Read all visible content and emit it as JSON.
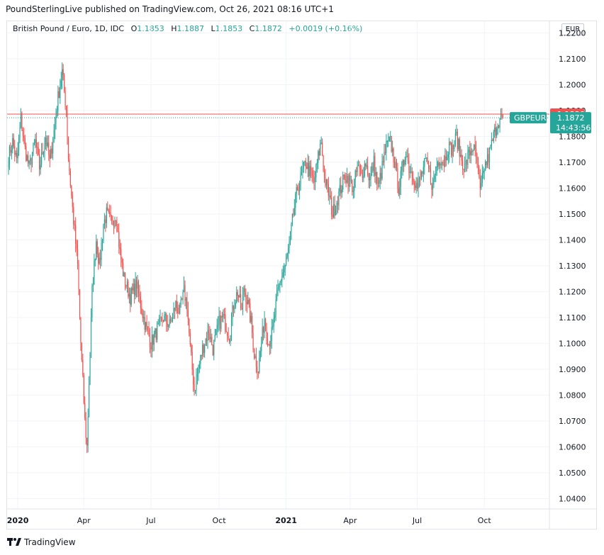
{
  "header": {
    "text": "PoundSterlingLive published on TradingView.com, Oct 26, 2021 08:16 UTC+1"
  },
  "legend": {
    "title": "British Pound / Euro, 1D, IDC",
    "o_label": "O",
    "o_value": "1.1853",
    "h_label": "H",
    "h_value": "1.1887",
    "l_label": "L",
    "l_value": "1.1853",
    "c_label": "C",
    "c_value": "1.1872",
    "change": "+0.0019 (+0.16%)"
  },
  "currency": "EUR",
  "footer": {
    "brand": "TradingView"
  },
  "colors": {
    "up": "#26a69a",
    "down": "#ef5350",
    "grid": "#f0f3fa",
    "axis_text": "#131722"
  },
  "chart_data": {
    "type": "candlestick",
    "title": "British Pound / Euro, 1D, IDC",
    "symbol": "GBPEUR",
    "ylim": [
      1.036,
      1.2245
    ],
    "yticks": [
      "1.2200",
      "1.2100",
      "1.2000",
      "1.1900",
      "1.1800",
      "1.1700",
      "1.1600",
      "1.1500",
      "1.1400",
      "1.1300",
      "1.1200",
      "1.1100",
      "1.1000",
      "1.0900",
      "1.0800",
      "1.0700",
      "1.0600",
      "1.0500",
      "1.0400"
    ],
    "xticks": [
      {
        "label": "2020",
        "bold": true,
        "index": 9
      },
      {
        "label": "Apr",
        "bold": false,
        "index": 73
      },
      {
        "label": "Jul",
        "bold": false,
        "index": 138
      },
      {
        "label": "Oct",
        "bold": false,
        "index": 204
      },
      {
        "label": "2021",
        "bold": true,
        "index": 269
      },
      {
        "label": "Apr",
        "bold": false,
        "index": 331
      },
      {
        "label": "Jul",
        "bold": false,
        "index": 396
      },
      {
        "label": "Oct",
        "bold": false,
        "index": 461
      }
    ],
    "keyframes": [
      [
        0,
        1.172
      ],
      [
        4,
        1.178
      ],
      [
        8,
        1.17
      ],
      [
        12,
        1.187
      ],
      [
        16,
        1.175
      ],
      [
        20,
        1.168
      ],
      [
        26,
        1.178
      ],
      [
        30,
        1.168
      ],
      [
        36,
        1.18
      ],
      [
        40,
        1.17
      ],
      [
        45,
        1.185
      ],
      [
        48,
        1.195
      ],
      [
        52,
        1.205
      ],
      [
        56,
        1.19
      ],
      [
        58,
        1.172
      ],
      [
        62,
        1.152
      ],
      [
        67,
        1.13
      ],
      [
        70,
        1.1
      ],
      [
        74,
        1.07
      ],
      [
        76,
        1.06
      ],
      [
        78,
        1.085
      ],
      [
        81,
        1.12
      ],
      [
        85,
        1.14
      ],
      [
        88,
        1.13
      ],
      [
        92,
        1.146
      ],
      [
        95,
        1.15
      ],
      [
        100,
        1.146
      ],
      [
        104,
        1.15
      ],
      [
        108,
        1.135
      ],
      [
        112,
        1.125
      ],
      [
        118,
        1.118
      ],
      [
        124,
        1.123
      ],
      [
        128,
        1.115
      ],
      [
        132,
        1.108
      ],
      [
        138,
        1.1
      ],
      [
        144,
        1.105
      ],
      [
        150,
        1.11
      ],
      [
        156,
        1.107
      ],
      [
        162,
        1.115
      ],
      [
        166,
        1.112
      ],
      [
        170,
        1.12
      ],
      [
        173,
        1.115
      ],
      [
        176,
        1.098
      ],
      [
        180,
        1.082
      ],
      [
        184,
        1.09
      ],
      [
        188,
        1.098
      ],
      [
        194,
        1.105
      ],
      [
        198,
        1.098
      ],
      [
        204,
        1.108
      ],
      [
        208,
        1.11
      ],
      [
        214,
        1.103
      ],
      [
        218,
        1.115
      ],
      [
        222,
        1.12
      ],
      [
        226,
        1.112
      ],
      [
        228,
        1.122
      ],
      [
        232,
        1.115
      ],
      [
        235,
        1.108
      ],
      [
        238,
        1.096
      ],
      [
        242,
        1.09
      ],
      [
        245,
        1.1
      ],
      [
        248,
        1.11
      ],
      [
        252,
        1.1
      ],
      [
        256,
        1.105
      ],
      [
        260,
        1.118
      ],
      [
        264,
        1.125
      ],
      [
        268,
        1.13
      ],
      [
        272,
        1.138
      ],
      [
        276,
        1.15
      ],
      [
        280,
        1.16
      ],
      [
        284,
        1.165
      ],
      [
        288,
        1.17
      ],
      [
        292,
        1.166
      ],
      [
        296,
        1.162
      ],
      [
        300,
        1.172
      ],
      [
        303,
        1.178
      ],
      [
        306,
        1.164
      ],
      [
        310,
        1.158
      ],
      [
        314,
        1.15
      ],
      [
        318,
        1.155
      ],
      [
        322,
        1.16
      ],
      [
        326,
        1.165
      ],
      [
        330,
        1.163
      ],
      [
        334,
        1.16
      ],
      [
        338,
        1.168
      ],
      [
        342,
        1.165
      ],
      [
        346,
        1.17
      ],
      [
        350,
        1.163
      ],
      [
        354,
        1.17
      ],
      [
        358,
        1.16
      ],
      [
        362,
        1.168
      ],
      [
        366,
        1.176
      ],
      [
        370,
        1.178
      ],
      [
        374,
        1.17
      ],
      [
        378,
        1.16
      ],
      [
        382,
        1.168
      ],
      [
        385,
        1.175
      ],
      [
        388,
        1.168
      ],
      [
        392,
        1.165
      ],
      [
        396,
        1.16
      ],
      [
        400,
        1.165
      ],
      [
        404,
        1.17
      ],
      [
        408,
        1.166
      ],
      [
        411,
        1.16
      ],
      [
        414,
        1.168
      ],
      [
        418,
        1.172
      ],
      [
        422,
        1.17
      ],
      [
        426,
        1.176
      ],
      [
        430,
        1.175
      ],
      [
        434,
        1.18
      ],
      [
        438,
        1.172
      ],
      [
        442,
        1.168
      ],
      [
        446,
        1.173
      ],
      [
        450,
        1.176
      ],
      [
        454,
        1.17
      ],
      [
        457,
        1.158
      ],
      [
        461,
        1.168
      ],
      [
        465,
        1.172
      ],
      [
        470,
        1.18
      ],
      [
        474,
        1.186
      ],
      [
        478,
        1.1872
      ]
    ],
    "current_price": {
      "label": "GBPEUR",
      "value": "1.1872",
      "countdown": "14:43:56"
    },
    "high_line": {
      "value": "1.1886"
    }
  }
}
